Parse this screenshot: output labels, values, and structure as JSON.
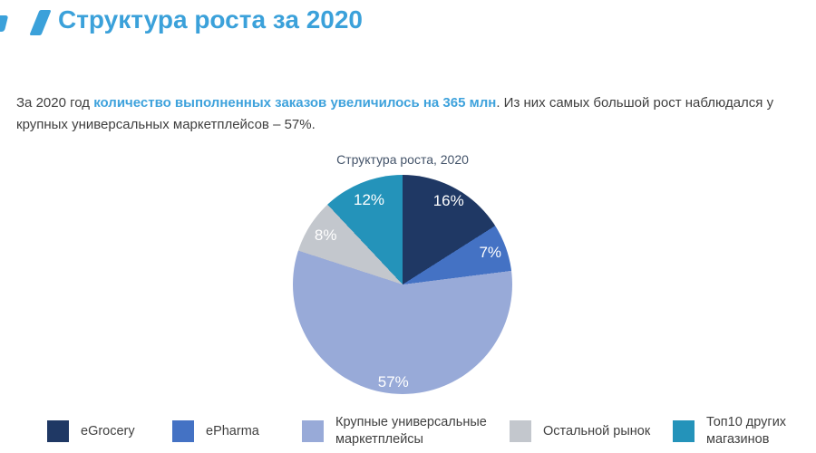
{
  "page": {
    "title": "Структура роста за 2020"
  },
  "intro": {
    "segments": [
      {
        "text": "За 2020 год ",
        "style": "normal"
      },
      {
        "text": "количество выполненных заказов увеличилось на 365 млн",
        "style": "highlight"
      },
      {
        "text": ". Из них самых большой рост наблюдался у крупных универсальных маркетплейсов – 57%.",
        "style": "normal"
      }
    ]
  },
  "chart_data": {
    "type": "pie",
    "title": "Структура роста, 2020",
    "start_angle_deg": 0,
    "direction": "clockwise",
    "value_suffix": "%",
    "legend_position": "bottom",
    "slices": [
      {
        "label": "eGrocery",
        "value": 16,
        "color": "#1f3864"
      },
      {
        "label": "ePharma",
        "value": 7,
        "color": "#4472c4"
      },
      {
        "label": "Крупные универсальные маркетплейсы",
        "value": 57,
        "color": "#98aad8"
      },
      {
        "label": "Остальной рынок",
        "value": 8,
        "color": "#c3c7cd"
      },
      {
        "label": "Топ10 других магазинов",
        "value": 12,
        "color": "#2493ba"
      }
    ]
  },
  "legend": {
    "items": [
      {
        "label": "eGrocery",
        "color": "#1f3864",
        "two_line": false
      },
      {
        "label": "ePharma",
        "color": "#4472c4",
        "two_line": false
      },
      {
        "label": "Крупные универсальные\nмаркетплейсы",
        "color": "#98aad8",
        "two_line": true
      },
      {
        "label": "Остальной рынок",
        "color": "#c3c7cd",
        "two_line": false
      },
      {
        "label": "Топ10 других\nмагазинов",
        "color": "#2493ba",
        "two_line": true
      }
    ]
  },
  "colors": {
    "accent_blue": "#3ba1da",
    "highlight_blue": "#3ea2dc",
    "text_dark": "#3f3f3f",
    "chart_title": "#44546a"
  }
}
